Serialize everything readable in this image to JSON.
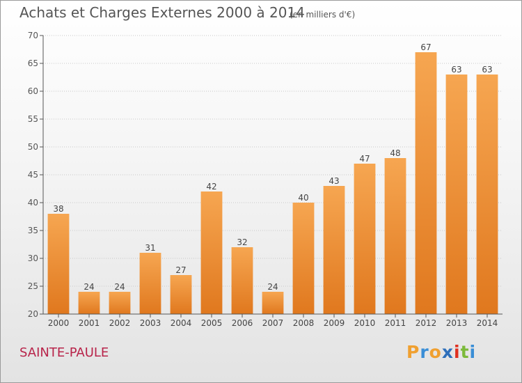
{
  "header": {
    "title": "Achats et Charges Externes 2000 à 2014",
    "subtitle": "(en milliers d'€)"
  },
  "footer": {
    "commune": "SAINTE-PAULE",
    "logo": {
      "text": "Proxiti",
      "letters": [
        "P",
        "r",
        "o",
        "x",
        "i",
        "t",
        "i"
      ],
      "letter_colors": [
        "#f0a030",
        "#3a8ed6",
        "#f0a030",
        "#2e6fba",
        "#e03020",
        "#7cba3a",
        "#3a8ed6"
      ]
    }
  },
  "colors": {
    "bar_light": "#f6a651",
    "bar_dark": "#e0781e",
    "title": "#555555",
    "commune": "#b8244a",
    "grid": "#c8c8c8",
    "axis": "#555555"
  },
  "chart_data": {
    "type": "bar",
    "categories": [
      "2000",
      "2001",
      "2002",
      "2003",
      "2004",
      "2005",
      "2006",
      "2007",
      "2008",
      "2009",
      "2010",
      "2011",
      "2012",
      "2013",
      "2014"
    ],
    "values": [
      38,
      24,
      24,
      31,
      27,
      42,
      32,
      24,
      40,
      43,
      47,
      48,
      67,
      63,
      63
    ],
    "title": "Achats et Charges Externes 2000 à 2014",
    "subtitle": "(en milliers d'€)",
    "xlabel": "",
    "ylabel": "",
    "ylim": [
      20,
      70
    ],
    "yticks": [
      20,
      25,
      30,
      35,
      40,
      45,
      50,
      55,
      60,
      65,
      70
    ],
    "grid": true,
    "data_labels": true
  }
}
